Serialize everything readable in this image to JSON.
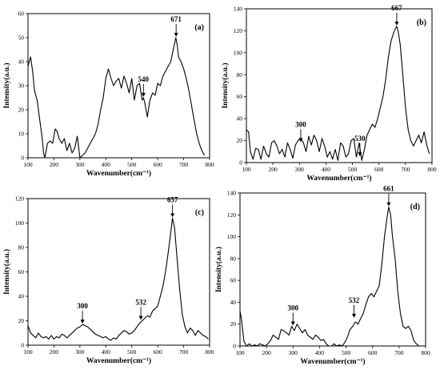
{
  "chart_data": [
    {
      "type": "line",
      "panel_label": "(a)",
      "xlabel": "Wavenumber(cm⁻¹)",
      "ylabel": "Intensity(a.u.)",
      "xlim": [
        100,
        800
      ],
      "ylim": [
        0,
        60
      ],
      "x_ticks": [
        "100",
        "200",
        "300",
        "400",
        "500",
        "600",
        "700",
        "800"
      ],
      "y_ticks": [
        "0",
        "10",
        "20",
        "30",
        "40",
        "50",
        "60"
      ],
      "annotations": [
        {
          "label": "540",
          "x": 545,
          "y": 25
        },
        {
          "label": "671",
          "x": 671,
          "y": 50
        }
      ],
      "series": [
        {
          "x": [
            100,
            110,
            118,
            125,
            135,
            145,
            155,
            160,
            165,
            170,
            175,
            185,
            195,
            205,
            212,
            220,
            230,
            240,
            250,
            260,
            270,
            280,
            290,
            300,
            310,
            320,
            330,
            340,
            350,
            360,
            370,
            380,
            390,
            400,
            410,
            420,
            430,
            440,
            450,
            460,
            470,
            480,
            490,
            500,
            510,
            520,
            530,
            540,
            545,
            550,
            560,
            570,
            580,
            590,
            600,
            610,
            620,
            630,
            640,
            650,
            660,
            670,
            675,
            680,
            690,
            700,
            710,
            720,
            730,
            740,
            750,
            760,
            770,
            780
          ],
          "y": [
            38,
            42,
            36,
            28,
            24,
            16,
            8,
            2,
            0,
            3,
            6,
            7,
            6,
            12,
            11,
            8,
            6,
            8,
            3,
            6,
            2,
            4,
            9,
            0,
            1,
            2,
            4,
            6,
            8,
            10,
            14,
            20,
            25,
            33,
            37,
            33,
            30,
            32,
            33,
            29,
            34,
            31,
            27,
            33,
            24,
            30,
            31,
            24,
            25,
            23,
            17,
            24,
            27,
            26,
            31,
            30,
            34,
            36,
            38,
            40,
            45,
            50,
            47,
            42,
            40,
            37,
            33,
            28,
            22,
            16,
            10,
            6,
            3,
            1
          ]
        }
      ]
    },
    {
      "type": "line",
      "panel_label": "(b)",
      "xlabel": "Wavenumber(cm⁻¹)",
      "ylabel": "Intensity(a.u.)",
      "xlim": [
        100,
        800
      ],
      "ylim": [
        0,
        140
      ],
      "x_ticks": [
        "100",
        "200",
        "300",
        "400",
        "500",
        "600",
        "700",
        "800"
      ],
      "y_ticks": [
        "0",
        "20",
        "40",
        "60",
        "80",
        "100",
        "120",
        "140"
      ],
      "annotations": [
        {
          "label": "300",
          "x": 305,
          "y": 18
        },
        {
          "label": "530",
          "x": 528,
          "y": 5
        },
        {
          "label": "667",
          "x": 667,
          "y": 124
        }
      ],
      "series": [
        {
          "x": [
            100,
            108,
            115,
            125,
            135,
            145,
            155,
            165,
            175,
            185,
            195,
            205,
            215,
            225,
            235,
            245,
            255,
            265,
            275,
            285,
            295,
            305,
            315,
            325,
            335,
            345,
            355,
            365,
            375,
            385,
            395,
            405,
            415,
            425,
            435,
            445,
            455,
            465,
            475,
            485,
            495,
            505,
            515,
            525,
            535,
            545,
            555,
            565,
            575,
            585,
            595,
            605,
            615,
            625,
            635,
            645,
            655,
            662,
            667,
            672,
            680,
            690,
            700,
            710,
            720,
            730,
            740,
            750,
            760,
            770,
            780,
            790
          ],
          "y": [
            30,
            28,
            10,
            3,
            13,
            12,
            3,
            15,
            8,
            5,
            18,
            20,
            15,
            8,
            12,
            5,
            18,
            12,
            4,
            16,
            20,
            22,
            18,
            10,
            24,
            16,
            25,
            20,
            10,
            22,
            15,
            5,
            10,
            3,
            12,
            2,
            18,
            15,
            5,
            8,
            20,
            22,
            5,
            18,
            2,
            12,
            25,
            30,
            35,
            32,
            40,
            50,
            60,
            75,
            95,
            110,
            118,
            122,
            124,
            120,
            108,
            80,
            50,
            30,
            20,
            15,
            20,
            25,
            18,
            28,
            16,
            8
          ]
        }
      ]
    },
    {
      "type": "line",
      "panel_label": "(c)",
      "xlabel": "Wavenumber(cm⁻¹)",
      "ylabel": "Intensity(a.u.)",
      "xlim": [
        100,
        800
      ],
      "ylim": [
        0,
        120
      ],
      "x_ticks": [
        "100",
        "200",
        "300",
        "400",
        "500",
        "600",
        "700",
        "800"
      ],
      "y_ticks": [
        "0",
        "20",
        "40",
        "60",
        "80",
        "100",
        "120"
      ],
      "annotations": [
        {
          "label": "300",
          "x": 310,
          "y": 17
        },
        {
          "label": "532",
          "x": 535,
          "y": 20
        },
        {
          "label": "657",
          "x": 657,
          "y": 104
        }
      ],
      "series": [
        {
          "x": [
            100,
            110,
            120,
            130,
            140,
            150,
            160,
            170,
            180,
            190,
            200,
            210,
            220,
            230,
            240,
            250,
            260,
            270,
            280,
            290,
            300,
            310,
            320,
            330,
            340,
            350,
            360,
            370,
            380,
            390,
            400,
            410,
            420,
            430,
            440,
            450,
            460,
            470,
            480,
            490,
            500,
            510,
            520,
            530,
            540,
            550,
            560,
            570,
            580,
            590,
            600,
            610,
            620,
            630,
            640,
            650,
            657,
            665,
            675,
            685,
            695,
            705,
            715,
            725,
            735,
            745,
            755,
            765,
            775,
            785,
            795
          ],
          "y": [
            16,
            10,
            8,
            6,
            10,
            7,
            6,
            7,
            5,
            8,
            5,
            7,
            6,
            9,
            8,
            6,
            8,
            10,
            12,
            14,
            15,
            17,
            16,
            15,
            13,
            11,
            9,
            8,
            7,
            6,
            7,
            5,
            4,
            6,
            5,
            8,
            10,
            12,
            11,
            9,
            10,
            12,
            15,
            18,
            20,
            22,
            24,
            23,
            28,
            30,
            32,
            40,
            48,
            60,
            75,
            92,
            104,
            96,
            70,
            45,
            25,
            15,
            10,
            14,
            12,
            8,
            12,
            10,
            8,
            7,
            5
          ]
        }
      ]
    },
    {
      "type": "line",
      "panel_label": "(d)",
      "xlabel": "Wavenumber(cm⁻¹)",
      "ylabel": "Intensity(a.u.)",
      "xlim": [
        100,
        800
      ],
      "ylim": [
        0,
        140
      ],
      "x_ticks": [
        "100",
        "200",
        "300",
        "400",
        "500",
        "600",
        "700",
        "800"
      ],
      "y_ticks": [
        "0",
        "20",
        "40",
        "60",
        "80",
        "100",
        "120",
        "140"
      ],
      "annotations": [
        {
          "label": "300",
          "x": 300,
          "y": 18
        },
        {
          "label": "532",
          "x": 530,
          "y": 25
        },
        {
          "label": "661",
          "x": 661,
          "y": 127
        }
      ],
      "series": [
        {
          "x": [
            100,
            105,
            115,
            125,
            135,
            145,
            155,
            165,
            175,
            185,
            195,
            205,
            215,
            225,
            235,
            245,
            255,
            265,
            275,
            285,
            295,
            305,
            315,
            325,
            335,
            345,
            355,
            365,
            375,
            385,
            395,
            405,
            415,
            425,
            435,
            445,
            455,
            465,
            475,
            485,
            495,
            505,
            515,
            525,
            535,
            545,
            555,
            565,
            575,
            585,
            595,
            605,
            615,
            625,
            635,
            645,
            655,
            661,
            668,
            675,
            685,
            695,
            705,
            715,
            725,
            735,
            745,
            755,
            765,
            775,
            780
          ],
          "y": [
            32,
            25,
            4,
            0,
            2,
            0,
            1,
            0,
            2,
            1,
            0,
            2,
            5,
            10,
            8,
            6,
            15,
            14,
            12,
            10,
            18,
            14,
            20,
            16,
            12,
            15,
            10,
            8,
            6,
            10,
            8,
            5,
            6,
            2,
            0,
            0,
            2,
            0,
            1,
            0,
            3,
            8,
            15,
            18,
            22,
            20,
            25,
            30,
            38,
            45,
            48,
            45,
            50,
            55,
            75,
            100,
            118,
            127,
            120,
            100,
            80,
            50,
            30,
            18,
            16,
            18,
            14,
            5,
            2,
            0,
            0
          ]
        }
      ]
    }
  ]
}
